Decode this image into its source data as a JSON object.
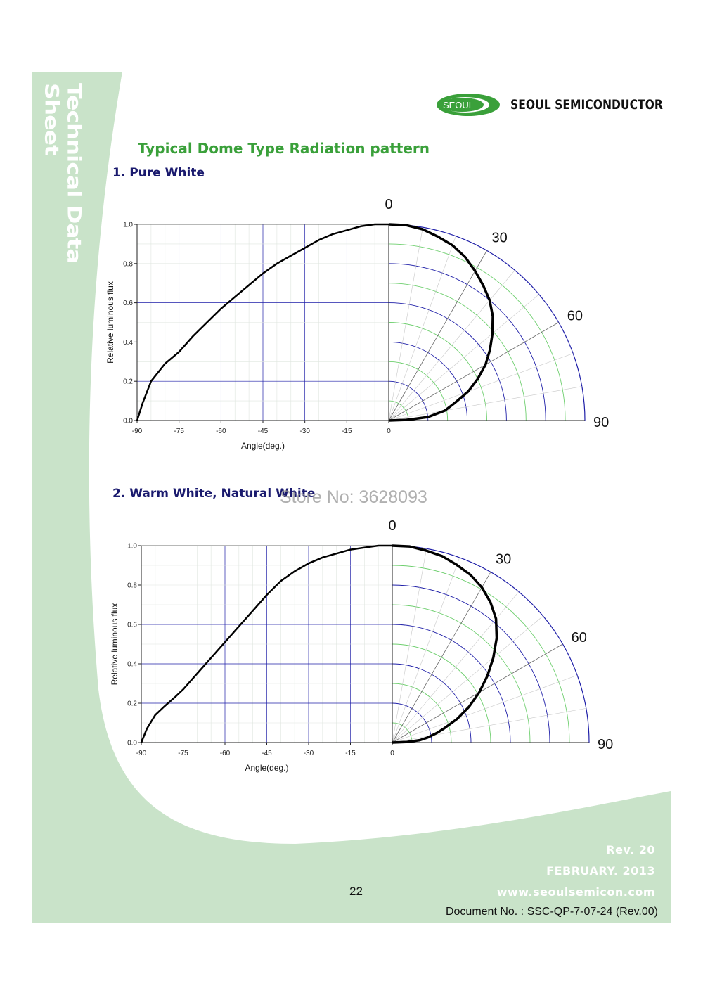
{
  "sidebar": {
    "title": "Technical Data Sheet"
  },
  "header": {
    "logo_text": "SEOUL",
    "company": "SEOUL SEMICONDUCTOR"
  },
  "main": {
    "title": "Typical Dome Type Radiation pattern"
  },
  "watermark": "Store No: 3628093",
  "colors": {
    "background_green": "#c9e3c9",
    "title_green": "#3aa03a",
    "section_blue": "#1a1a6e",
    "grid_blue": "#1f1fa8",
    "grid_green": "#6fcf6f"
  },
  "chart_data": [
    {
      "type": "line",
      "section_title": "1. Pure White",
      "xlabel": "Angle(deg.)",
      "ylabel": "Relative luminous flux",
      "xlim": [
        -90,
        0
      ],
      "ylim": [
        0,
        1.0
      ],
      "xticks": [
        "-90",
        "-75",
        "-60",
        "-45",
        "-30",
        "-15",
        "0"
      ],
      "yticks": [
        "0.0",
        "0.2",
        "0.4",
        "0.6",
        "0.8",
        "1.0"
      ],
      "polar_labels": [
        "0",
        "30",
        "60",
        "90"
      ],
      "series": [
        {
          "x": [
            -90,
            -88,
            -85,
            -80,
            -75,
            -70,
            -65,
            -60,
            -55,
            -50,
            -45,
            -40,
            -35,
            -30,
            -25,
            -20,
            -15,
            -10,
            -5,
            0
          ],
          "y": [
            0.0,
            0.09,
            0.2,
            0.29,
            0.35,
            0.43,
            0.5,
            0.57,
            0.63,
            0.69,
            0.75,
            0.8,
            0.84,
            0.88,
            0.92,
            0.95,
            0.97,
            0.99,
            1.0,
            1.0
          ]
        }
      ]
    },
    {
      "type": "line",
      "section_title": "2. Warm White, Natural White",
      "xlabel": "Angle(deg.)",
      "ylabel": "Relative luminous flux",
      "xlim": [
        -90,
        0
      ],
      "ylim": [
        0,
        1.0
      ],
      "xticks": [
        "-90",
        "-75",
        "-60",
        "-45",
        "-30",
        "-15",
        "0"
      ],
      "yticks": [
        "0.0",
        "0.2",
        "0.4",
        "0.6",
        "0.8",
        "1.0"
      ],
      "polar_labels": [
        "0",
        "30",
        "60",
        "90"
      ],
      "series": [
        {
          "x": [
            -90,
            -88,
            -85,
            -82,
            -78,
            -75,
            -70,
            -65,
            -60,
            -55,
            -50,
            -45,
            -40,
            -35,
            -30,
            -25,
            -20,
            -15,
            -10,
            -5,
            0
          ],
          "y": [
            0.0,
            0.07,
            0.14,
            0.18,
            0.23,
            0.27,
            0.35,
            0.43,
            0.51,
            0.59,
            0.67,
            0.75,
            0.82,
            0.87,
            0.91,
            0.94,
            0.96,
            0.98,
            0.99,
            1.0,
            1.0
          ]
        }
      ]
    }
  ],
  "footer": {
    "rev": "Rev. 20",
    "date": "FEBRUARY. 2013",
    "website": "www.seoulsemicon.com",
    "page_number": "22",
    "doc_no": "Document No. : SSC-QP-7-07-24 (Rev.00)"
  }
}
